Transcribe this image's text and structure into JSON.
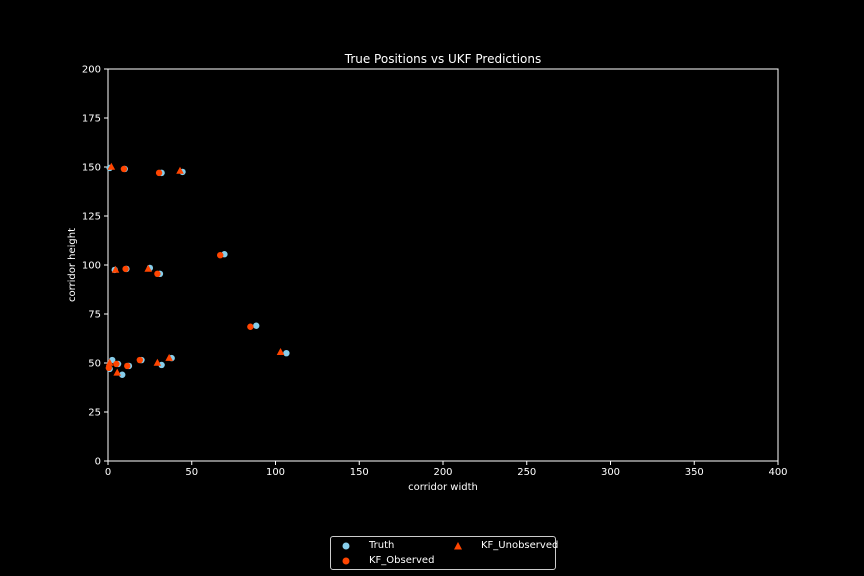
{
  "chart_data": {
    "type": "scatter",
    "title": "True Positions vs UKF Predictions",
    "xlabel": "corridor width",
    "ylabel": "corridor height",
    "xlim": [
      0,
      400
    ],
    "ylim": [
      0,
      200
    ],
    "xticks": [
      0,
      50,
      100,
      150,
      200,
      250,
      300,
      350,
      400
    ],
    "yticks": [
      0,
      25,
      50,
      75,
      100,
      125,
      150,
      175,
      200
    ],
    "grid": false,
    "legend_position": "bottom-center, below plot",
    "series": [
      {
        "name": "Truth",
        "marker": "circle",
        "color": "#87ceeb",
        "points": [
          [
            1,
            149.5
          ],
          [
            10,
            149
          ],
          [
            32,
            147
          ],
          [
            44.5,
            147.5
          ],
          [
            4,
            97.5
          ],
          [
            11,
            98
          ],
          [
            25,
            98.5
          ],
          [
            31,
            95.5
          ],
          [
            69.5,
            105.5
          ],
          [
            88.5,
            69
          ],
          [
            106.5,
            55
          ],
          [
            2.5,
            51.5
          ],
          [
            6,
            49.5
          ],
          [
            8.5,
            44
          ],
          [
            12.5,
            48.5
          ],
          [
            20,
            51.5
          ],
          [
            32,
            49
          ],
          [
            38,
            52.5
          ],
          [
            1,
            47
          ]
        ]
      },
      {
        "name": "KF_Observed",
        "marker": "circle",
        "color": "#ff4500",
        "points": [
          [
            9.5,
            149
          ],
          [
            30.5,
            147
          ],
          [
            10.5,
            98
          ],
          [
            29.5,
            95.5
          ],
          [
            67,
            105
          ],
          [
            85,
            68.5
          ],
          [
            11.5,
            48.5
          ],
          [
            19,
            51.5
          ],
          [
            5,
            49.5
          ],
          [
            0.5,
            47.5
          ]
        ]
      },
      {
        "name": "KF_Unobserved",
        "marker": "triangle",
        "color": "#ff4500",
        "points": [
          [
            2,
            150
          ],
          [
            43,
            148
          ],
          [
            4.5,
            97.5
          ],
          [
            24,
            98
          ],
          [
            103,
            55.5
          ],
          [
            29.5,
            50
          ],
          [
            36.5,
            52.5
          ],
          [
            5.5,
            45
          ],
          [
            1,
            50
          ]
        ]
      }
    ]
  }
}
